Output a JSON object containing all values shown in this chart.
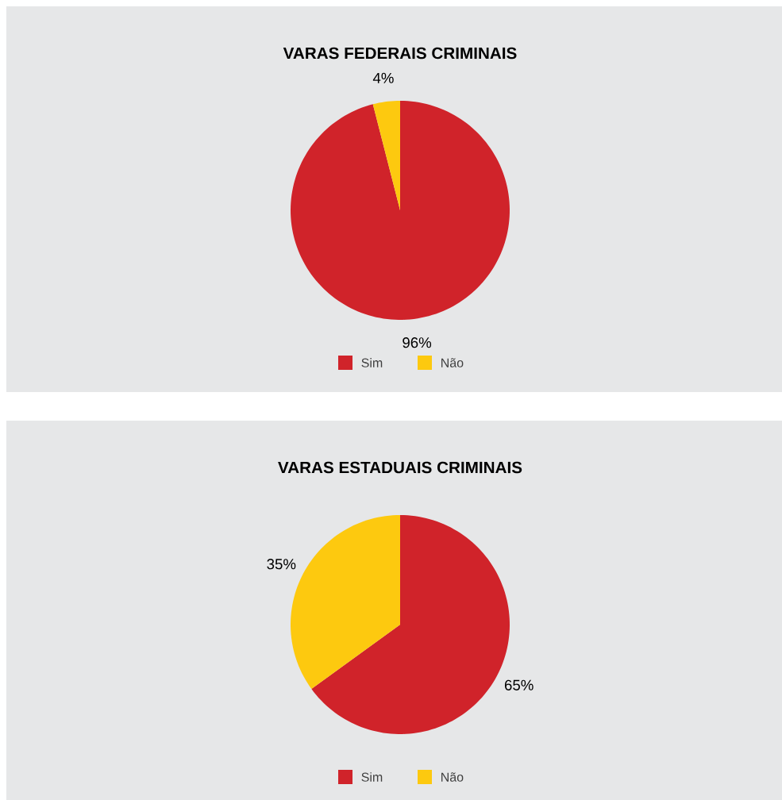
{
  "chart_data": [
    {
      "type": "pie",
      "title": "VARAS FEDERAIS CRIMINAIS",
      "categories": [
        "Sim",
        "Não"
      ],
      "values": [
        96,
        4
      ],
      "value_labels": [
        "96%",
        "4%"
      ],
      "colors": [
        "#d0232a",
        "#fdc90f"
      ],
      "legend": "bottom"
    },
    {
      "type": "pie",
      "title": "VARAS ESTADUAIS CRIMINAIS",
      "categories": [
        "Sim",
        "Não"
      ],
      "values": [
        65,
        35
      ],
      "value_labels": [
        "65%",
        "35%"
      ],
      "colors": [
        "#d0232a",
        "#fdc90f"
      ],
      "legend": "bottom"
    }
  ]
}
